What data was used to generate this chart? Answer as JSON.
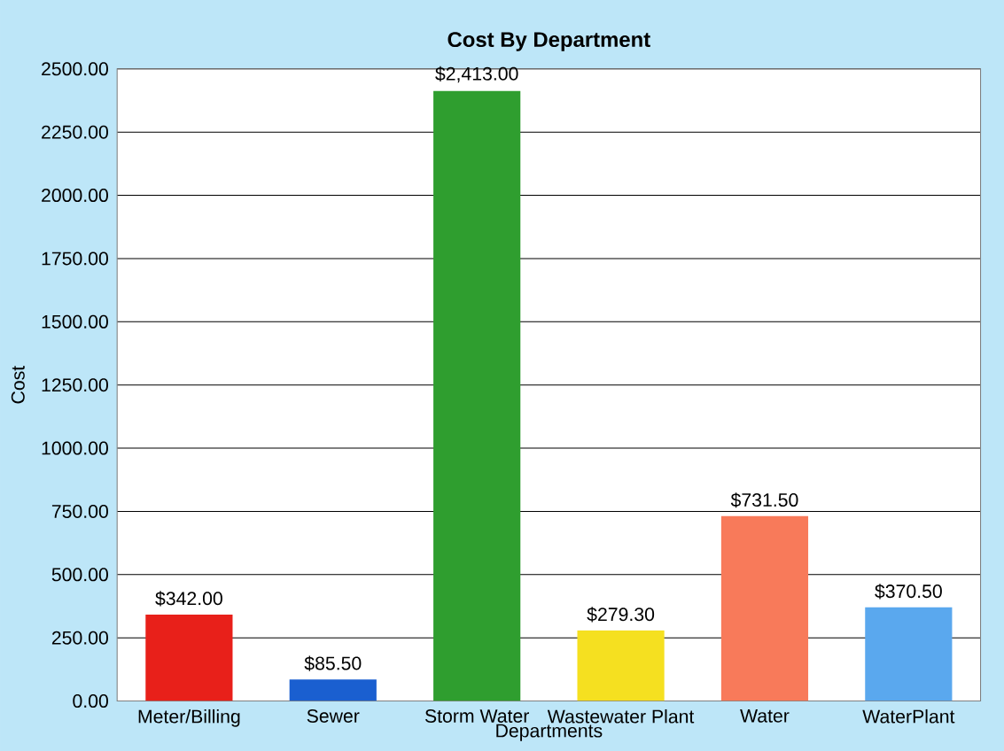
{
  "chart_data": {
    "type": "bar",
    "title": "Cost By Department",
    "xlabel": "Departments",
    "ylabel": "Cost",
    "categories": [
      "Meter/Billing",
      "Sewer",
      "Storm Water",
      "Wastewater Plant",
      "Water",
      "WaterPlant"
    ],
    "values": [
      342,
      85.5,
      2413,
      279.3,
      731.5,
      370.5
    ],
    "colors": [
      "#e8201a",
      "#1a5fd0",
      "#2f9e2f",
      "#f5e020",
      "#f87a5a",
      "#5aa8ee"
    ],
    "value_labels": [
      "$342.00",
      "$85.50",
      "$2,413.00",
      "$279.30",
      "$731.50",
      "$370.50"
    ],
    "ylim": [
      0,
      2500
    ],
    "yticks": [
      {
        "value": 0,
        "label": "0.00"
      },
      {
        "value": 250,
        "label": "250.00"
      },
      {
        "value": 500,
        "label": "500.00"
      },
      {
        "value": 750,
        "label": "750.00"
      },
      {
        "value": 1000,
        "label": "1000.00"
      },
      {
        "value": 1250,
        "label": "1250.00"
      },
      {
        "value": 1500,
        "label": "1500.00"
      },
      {
        "value": 1750,
        "label": "1750.00"
      },
      {
        "value": 2000,
        "label": "2000.00"
      },
      {
        "value": 2250,
        "label": "2250.00"
      },
      {
        "value": 2500,
        "label": "2500.00"
      }
    ],
    "grid": "y"
  }
}
